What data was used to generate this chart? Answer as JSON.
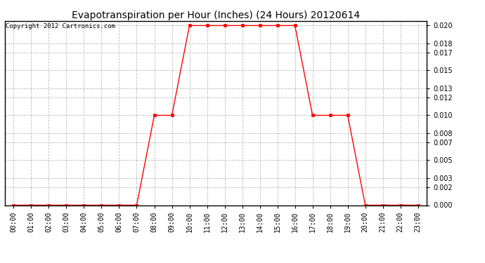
{
  "title": "Evapotranspiration per Hour (Inches) (24 Hours) 20120614",
  "copyright": "Copyright 2012 Cartronics.com",
  "hours": [
    0,
    1,
    2,
    3,
    4,
    5,
    6,
    7,
    8,
    9,
    10,
    11,
    12,
    13,
    14,
    15,
    16,
    17,
    18,
    19,
    20,
    21,
    22,
    23
  ],
  "values": [
    0.0,
    0.0,
    0.0,
    0.0,
    0.0,
    0.0,
    0.0,
    0.0,
    0.01,
    0.01,
    0.02,
    0.02,
    0.02,
    0.02,
    0.02,
    0.02,
    0.02,
    0.01,
    0.01,
    0.01,
    0.0,
    0.0,
    0.0,
    0.0
  ],
  "line_color": "red",
  "marker": "s",
  "marker_size": 2.5,
  "ylim": [
    0.0,
    0.0205
  ],
  "yticks": [
    0.0,
    0.002,
    0.003,
    0.005,
    0.007,
    0.008,
    0.01,
    0.012,
    0.013,
    0.015,
    0.017,
    0.018,
    0.02
  ],
  "background_color": "white",
  "grid_color": "#bbbbbb",
  "title_fontsize": 10,
  "tick_fontsize": 7,
  "copyright_fontsize": 6.5,
  "linewidth": 1.0
}
